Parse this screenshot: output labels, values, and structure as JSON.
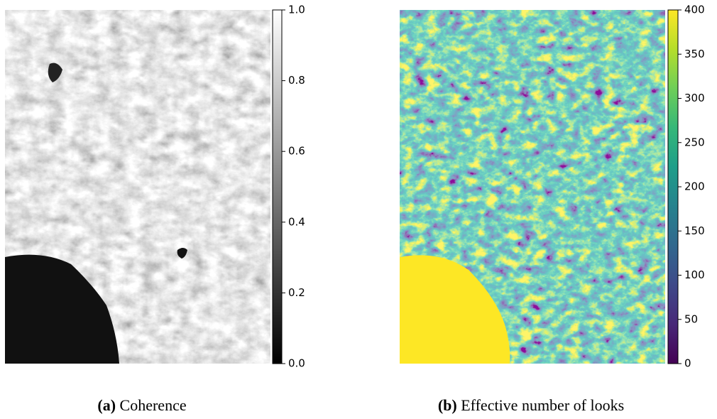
{
  "chart_data": [
    {
      "type": "image",
      "panel_label": "(a)",
      "caption": "Coherence",
      "colormap": "gray",
      "clim": [
        0,
        1
      ],
      "cticks": [
        {
          "value": 0,
          "label": "0.0"
        },
        0.2,
        0.4,
        0.6,
        0.8,
        {
          "value": 1,
          "label": "1.0"
        }
      ]
    },
    {
      "type": "image",
      "panel_label": "(b)",
      "caption": "Effective number of looks",
      "colormap": "viridis",
      "clim": [
        0,
        400
      ],
      "cticks": [
        0,
        50,
        100,
        150,
        200,
        250,
        300,
        350,
        400
      ]
    }
  ]
}
